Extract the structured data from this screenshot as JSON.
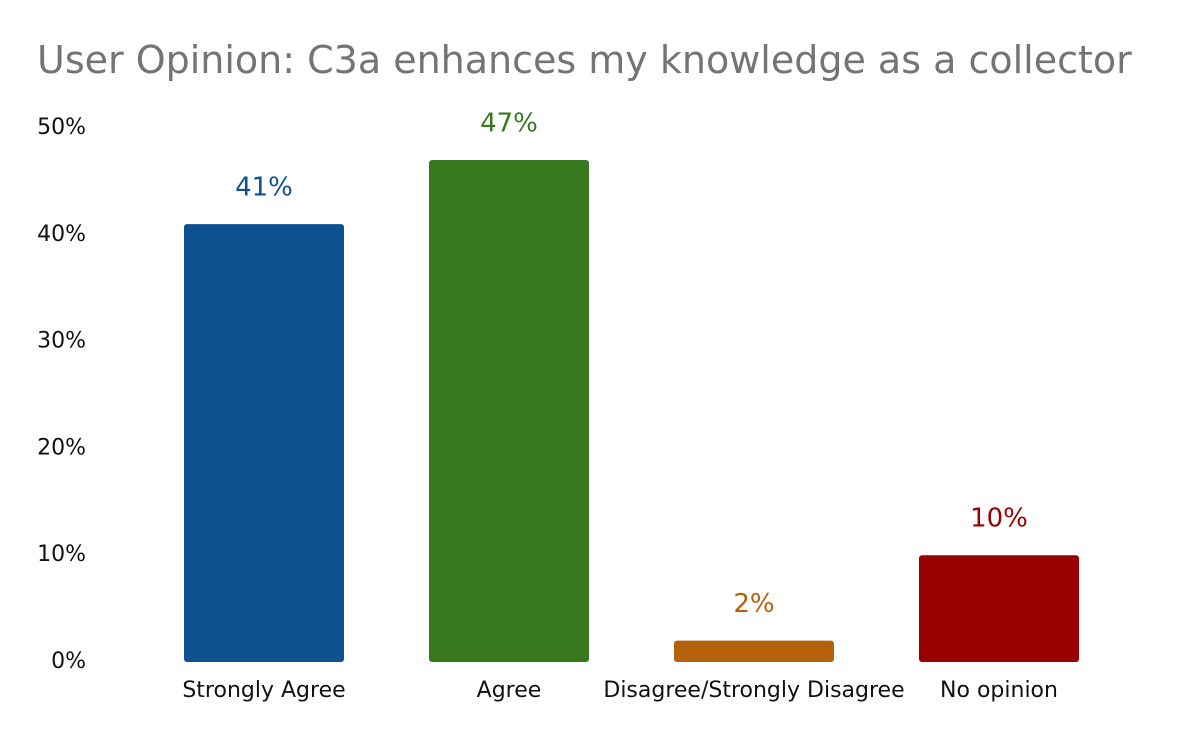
{
  "chart_data": {
    "type": "bar",
    "title": "User Opinion: C3a enhances my knowledge as a collector",
    "categories": [
      "Strongly Agree",
      "Agree",
      "Disagree/Strongly Disagree",
      "No opinion"
    ],
    "values": [
      41,
      47,
      2,
      10
    ],
    "data_labels": [
      "41%",
      "47%",
      "2%",
      "10%"
    ],
    "colors": [
      "#0d5191",
      "#38781f",
      "#b5600a",
      "#990000"
    ],
    "ylim": [
      0,
      50
    ],
    "y_ticks": [
      0,
      10,
      20,
      30,
      40,
      50
    ],
    "y_tick_labels": [
      "0%",
      "10%",
      "20%",
      "30%",
      "40%",
      "50%"
    ],
    "xlabel": "",
    "ylabel": "",
    "grid": false,
    "legend": "none"
  }
}
